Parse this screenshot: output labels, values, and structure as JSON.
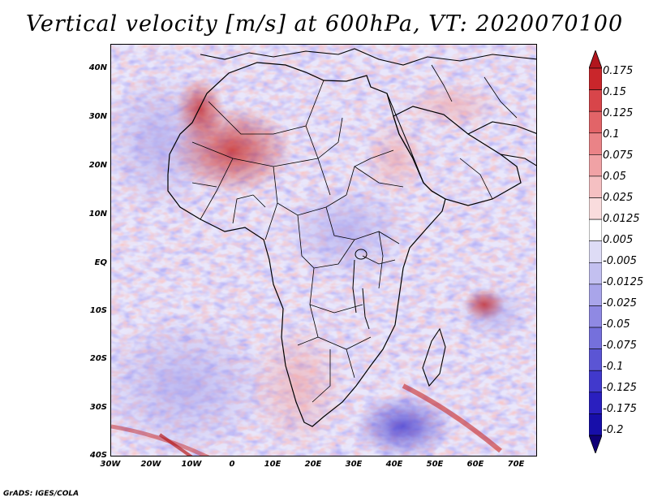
{
  "title": "Vertical velocity [m/s] at 600hPa, VT: 2020070100",
  "footer": "GrADS: IGES/COLA",
  "map": {
    "lat_labels": [
      "40N",
      "30N",
      "20N",
      "10N",
      "EQ",
      "10S",
      "20S",
      "30S",
      "40S"
    ],
    "lon_labels": [
      "30W",
      "20W",
      "10W",
      "0",
      "10E",
      "20E",
      "30E",
      "40E",
      "50E",
      "60E",
      "70E"
    ],
    "lat_range": [
      -40,
      45
    ],
    "lon_range": [
      -30,
      75
    ],
    "field_colors": {
      "negative_strong": "#3b2fc9",
      "negative_weak": "#b9b5f2",
      "neutral": "#ffffff",
      "positive_weak": "#f3b2b2",
      "positive_strong": "#c21b1b"
    }
  },
  "colorbar": {
    "levels": [
      "0.175",
      "0.15",
      "0.125",
      "0.1",
      "0.075",
      "0.05",
      "0.025",
      "0.0125",
      "0.005",
      "-0.005",
      "-0.0125",
      "-0.025",
      "-0.05",
      "-0.075",
      "-0.1",
      "-0.125",
      "-0.175",
      "-0.2"
    ],
    "colors": [
      "#b2161d",
      "#c9262b",
      "#d8454a",
      "#e26468",
      "#ea8387",
      "#f0a2a5",
      "#f5c0c2",
      "#f9dcdd",
      "#ffffff",
      "#dedcf6",
      "#c3c0f0",
      "#a9a5ea",
      "#8f89e3",
      "#7570dc",
      "#5b55d4",
      "#4139cc",
      "#2a1fbf",
      "#170ea9",
      "#100077"
    ]
  }
}
